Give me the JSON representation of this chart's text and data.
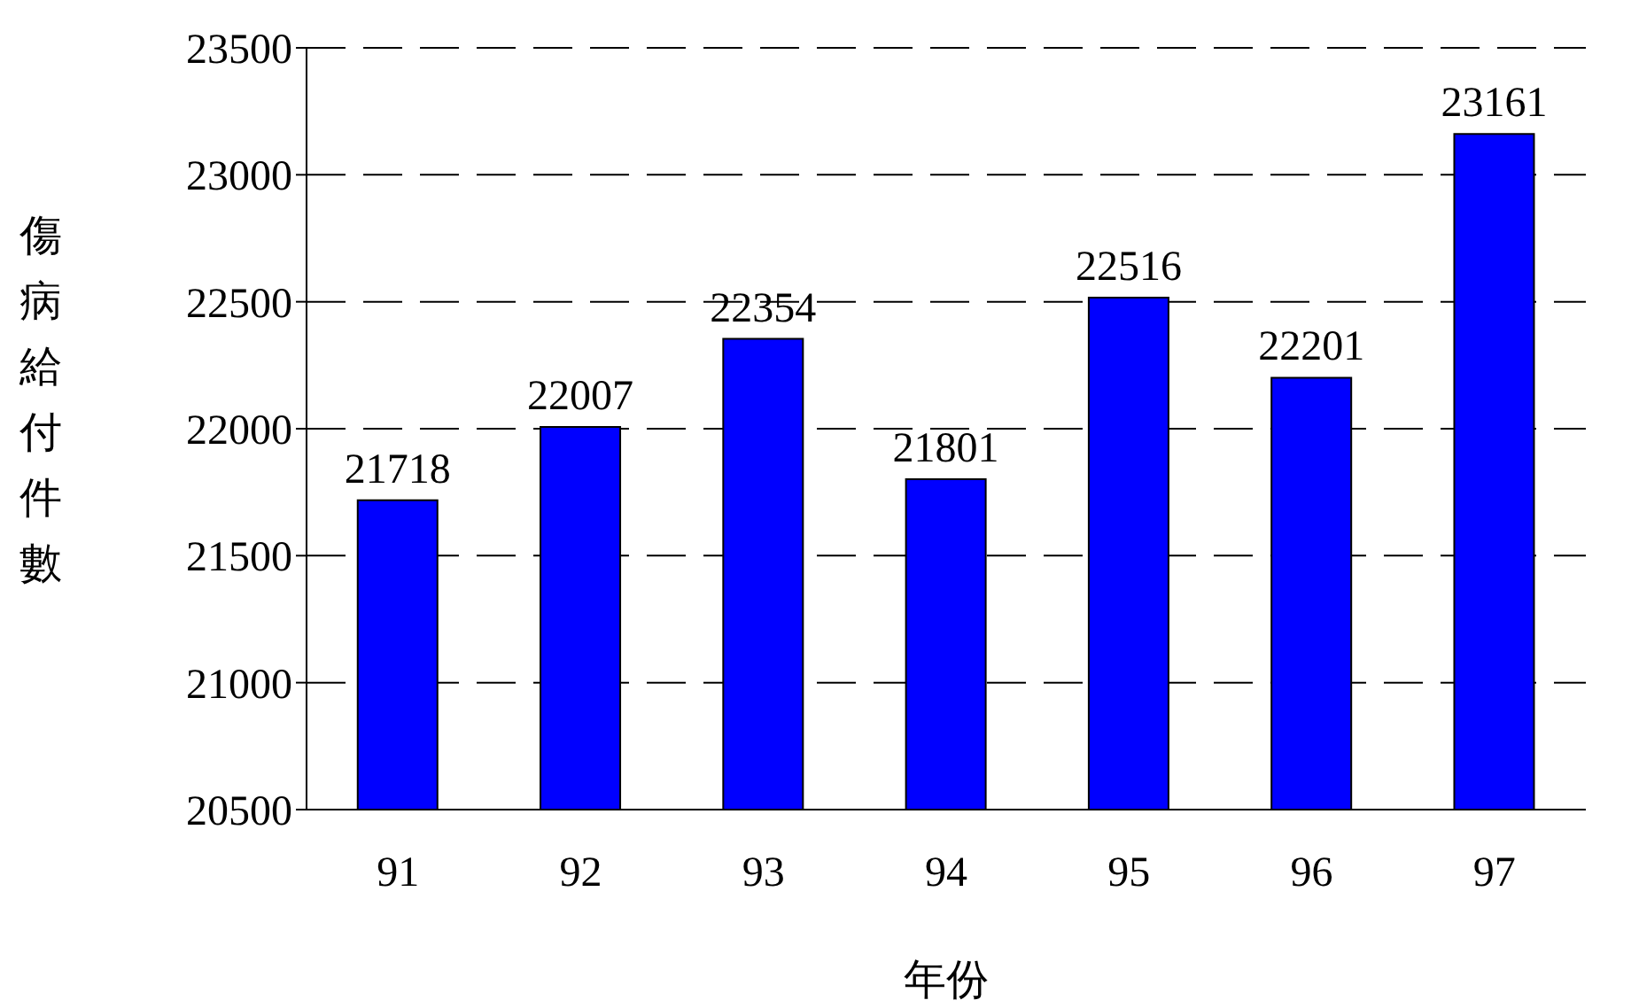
{
  "chart_data": {
    "type": "bar",
    "xlabel": "年份",
    "ylabel": "傷病給付件數",
    "categories": [
      "91",
      "92",
      "93",
      "94",
      "95",
      "96",
      "97"
    ],
    "values": [
      21718,
      22007,
      22354,
      21801,
      22516,
      22201,
      23161
    ],
    "color": "#0000ff",
    "ylim": [
      20500,
      23500
    ],
    "yticks": [
      20500,
      21000,
      21500,
      22000,
      22500,
      23000,
      23500
    ],
    "grid": "y",
    "data_labels": true
  }
}
